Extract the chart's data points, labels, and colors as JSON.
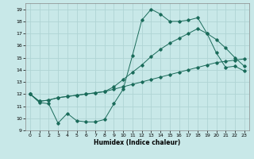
{
  "xlabel": "Humidex (Indice chaleur)",
  "bg_color": "#c8e8e8",
  "grid_color": "#b0d4d4",
  "line_color": "#1a6b5a",
  "xlim": [
    -0.5,
    23.5
  ],
  "ylim": [
    9,
    19.5
  ],
  "xticks": [
    0,
    1,
    2,
    3,
    4,
    5,
    6,
    7,
    8,
    9,
    10,
    11,
    12,
    13,
    14,
    15,
    16,
    17,
    18,
    19,
    20,
    21,
    22,
    23
  ],
  "yticks": [
    9,
    10,
    11,
    12,
    13,
    14,
    15,
    16,
    17,
    18,
    19
  ],
  "series1_x": [
    0,
    1,
    2,
    3,
    4,
    5,
    6,
    7,
    8,
    9,
    10,
    11,
    12,
    13,
    14,
    15,
    16,
    17,
    18,
    19,
    20,
    21,
    22,
    23
  ],
  "series1_y": [
    12.0,
    11.3,
    11.2,
    9.6,
    10.4,
    9.8,
    9.7,
    9.7,
    9.9,
    11.2,
    12.4,
    15.2,
    18.1,
    19.0,
    18.6,
    18.0,
    18.0,
    18.1,
    18.3,
    17.0,
    15.4,
    14.2,
    14.3,
    13.9
  ],
  "series2_x": [
    0,
    1,
    2,
    3,
    4,
    5,
    6,
    7,
    8,
    9,
    10,
    11,
    12,
    13,
    14,
    15,
    16,
    17,
    18,
    19,
    20,
    21,
    22,
    23
  ],
  "series2_y": [
    12.0,
    11.4,
    11.5,
    11.7,
    11.8,
    11.9,
    12.0,
    12.1,
    12.2,
    12.4,
    12.6,
    12.8,
    13.0,
    13.2,
    13.4,
    13.6,
    13.8,
    14.0,
    14.2,
    14.4,
    14.6,
    14.7,
    14.8,
    14.9
  ],
  "series3_x": [
    0,
    1,
    2,
    3,
    4,
    5,
    6,
    7,
    8,
    9,
    10,
    11,
    12,
    13,
    14,
    15,
    16,
    17,
    18,
    19,
    20,
    21,
    22,
    23
  ],
  "series3_y": [
    12.0,
    11.4,
    11.5,
    11.7,
    11.8,
    11.9,
    12.0,
    12.1,
    12.2,
    12.6,
    13.2,
    13.8,
    14.4,
    15.1,
    15.7,
    16.2,
    16.6,
    17.0,
    17.4,
    17.0,
    16.5,
    15.8,
    15.0,
    14.3
  ]
}
